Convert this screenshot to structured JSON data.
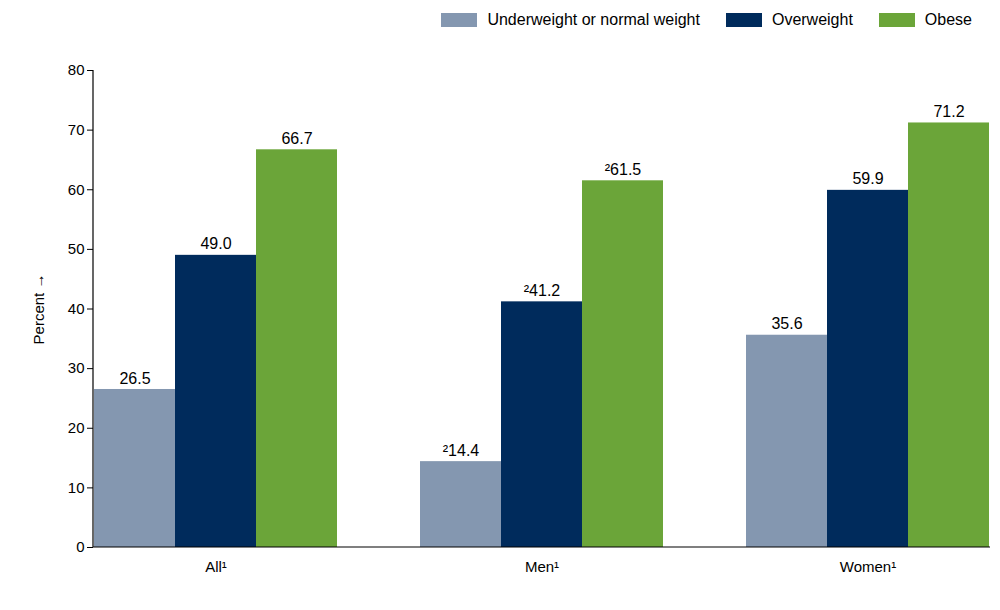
{
  "chart_data": {
    "type": "bar",
    "categories": [
      "All¹",
      "Men¹",
      "Women¹"
    ],
    "series": [
      {
        "name": "Underweight or normal weight",
        "color": "#8497b0",
        "values": [
          26.5,
          14.4,
          35.6
        ],
        "value_labels": [
          "26.5",
          "²14.4",
          "35.6"
        ]
      },
      {
        "name": "Overweight",
        "color": "#002b5c",
        "values": [
          49.0,
          41.2,
          59.9
        ],
        "value_labels": [
          "49.0",
          "²41.2",
          "59.9"
        ]
      },
      {
        "name": "Obese",
        "color": "#6ba539",
        "values": [
          66.7,
          61.5,
          71.2
        ],
        "value_labels": [
          "66.7",
          "²61.5",
          "71.2"
        ]
      }
    ],
    "y_label": "Percent",
    "ylim": [
      0,
      80
    ],
    "yticks": [
      0,
      10,
      20,
      30,
      40,
      50,
      60,
      70,
      80
    ],
    "grid": false,
    "legend": "top-right",
    "data_labels": true
  }
}
